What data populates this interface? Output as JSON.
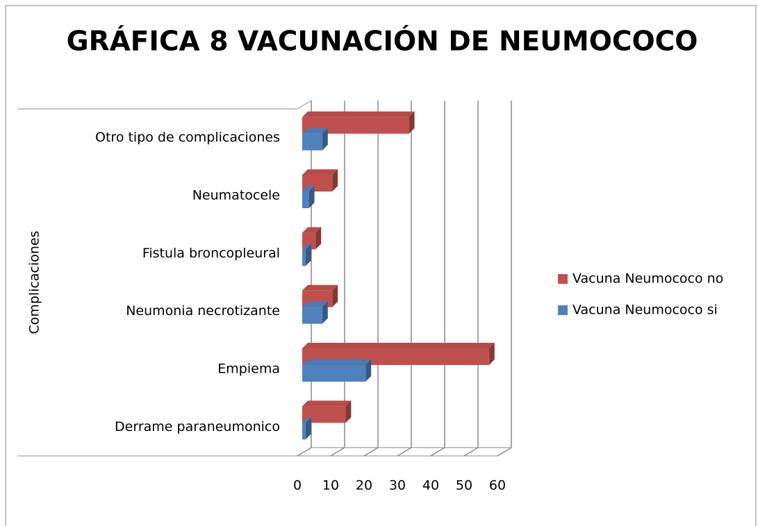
{
  "chart_data": {
    "type": "bar3d_horizontal",
    "title": "GRÁFICA 8 VACUNACIÓN DE NEUMOCOCO",
    "y_label": "Complicaciones",
    "categories": [
      "Derrame paraneumonico",
      "Empiema",
      "Neumonia necrotizante",
      "Fistula broncopleural",
      "Neumatocele",
      "Otro tipo de complicaciones"
    ],
    "series": [
      {
        "name": "Vacuna Neumococo no",
        "color": "#c0504d",
        "values": [
          13,
          56,
          9,
          4,
          9,
          32
        ]
      },
      {
        "name": "Vacuna Neumococo si",
        "color": "#4f81bd",
        "values": [
          1,
          19,
          6,
          1,
          2,
          6
        ]
      }
    ],
    "xlim": [
      0,
      60
    ],
    "xticks": [
      0,
      10,
      20,
      30,
      40,
      50,
      60
    ],
    "grid": true,
    "legend": "right"
  }
}
